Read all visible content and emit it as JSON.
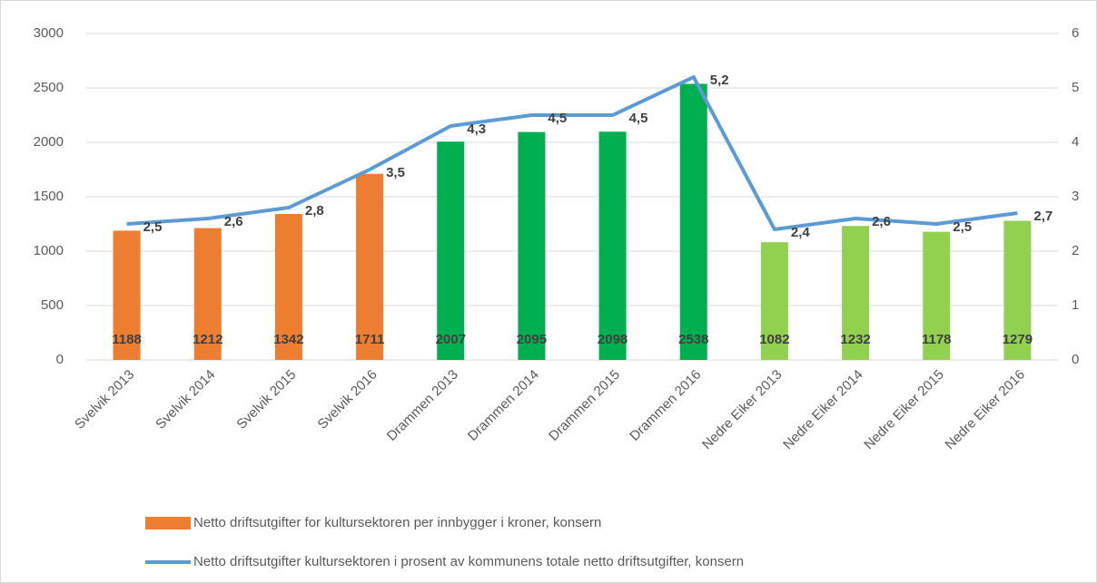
{
  "chart_data": {
    "type": "bar",
    "categories": [
      "Svelvik 2013",
      "Svelvik 2014",
      "Svelvik 2015",
      "Svelvik 2016",
      "Drammen 2013",
      "Drammen 2014",
      "Drammen 2015",
      "Drammen 2016",
      "Nedre Eiker 2013",
      "Nedre Eiker 2014",
      "Nedre Eiker 2015",
      "Nedre Eiker 2016"
    ],
    "series": [
      {
        "name": "Netto driftsutgifter for kultursektoren per innbygger i kroner, konsern",
        "type": "bar",
        "color": "#ed7d31",
        "colors": [
          "#ed7d31",
          "#ed7d31",
          "#ed7d31",
          "#ed7d31",
          "#00b050",
          "#00b050",
          "#00b050",
          "#00b050",
          "#92d050",
          "#92d050",
          "#92d050",
          "#92d050"
        ],
        "values": [
          1188,
          1212,
          1342,
          1711,
          2007,
          2095,
          2098,
          2538,
          1082,
          1232,
          1178,
          1279
        ]
      },
      {
        "name": "Netto driftsutgifter kultursektoren i prosent av kommunens totale netto driftsutgifter, konsern",
        "type": "line",
        "axis": "y2",
        "color": "#5b9bd5",
        "values": [
          2.5,
          2.6,
          2.8,
          3.5,
          4.3,
          4.5,
          4.5,
          5.2,
          2.4,
          2.6,
          2.5,
          2.7
        ],
        "value_labels": [
          "2,5",
          "2,6",
          "2,8",
          "3,5",
          "4,3",
          "4,5",
          "4,5",
          "5,2",
          "2,4",
          "2,6",
          "2,5",
          "2,7"
        ]
      }
    ],
    "ylim": [
      0,
      3000
    ],
    "yticks": [
      0,
      500,
      1000,
      1500,
      2000,
      2500,
      3000
    ],
    "y2lim": [
      0,
      6
    ],
    "y2ticks": [
      0,
      1,
      2,
      3,
      4,
      5,
      6
    ],
    "grid": true,
    "legend": "bottom"
  }
}
